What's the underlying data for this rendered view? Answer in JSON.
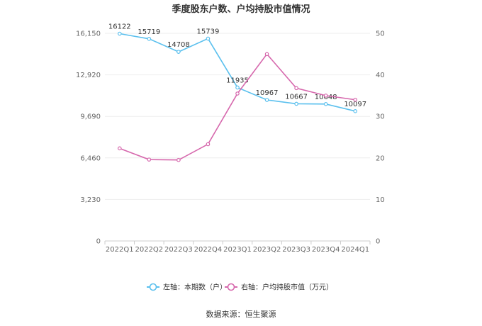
{
  "chart_data": {
    "type": "line",
    "title": "季度股东户数、户均持股市值情况",
    "categories": [
      "2022Q1",
      "2022Q2",
      "2022Q3",
      "2022Q4",
      "2023Q1",
      "2023Q2",
      "2023Q3",
      "2023Q4",
      "2024Q1"
    ],
    "left_axis": {
      "ticks": [
        "0",
        "3,230",
        "6,460",
        "9,690",
        "12,920",
        "16,150"
      ],
      "min": 0,
      "max": 16150
    },
    "right_axis": {
      "ticks": [
        "0",
        "10",
        "20",
        "30",
        "40",
        "50"
      ],
      "min": 0,
      "max": 50
    },
    "grid": true,
    "legend_position": "bottom",
    "series": [
      {
        "name": "左轴：本期数（户）",
        "axis": "left",
        "color": "#5bc0ee",
        "values": [
          16122,
          15719,
          14708,
          15739,
          11935,
          10967,
          10667,
          10648,
          10097
        ],
        "labels": [
          "16122",
          "15719",
          "14708",
          "15739",
          "11935",
          "10967",
          "10667",
          "10648",
          "10097"
        ]
      },
      {
        "name": "右轴：户均持股市值（万元）",
        "axis": "right",
        "color": "#d668ad",
        "values": [
          22.3,
          19.6,
          19.5,
          23.3,
          35.5,
          45.0,
          36.8,
          35.0,
          34.0
        ]
      }
    ],
    "source": "数据来源：恒生聚源"
  }
}
